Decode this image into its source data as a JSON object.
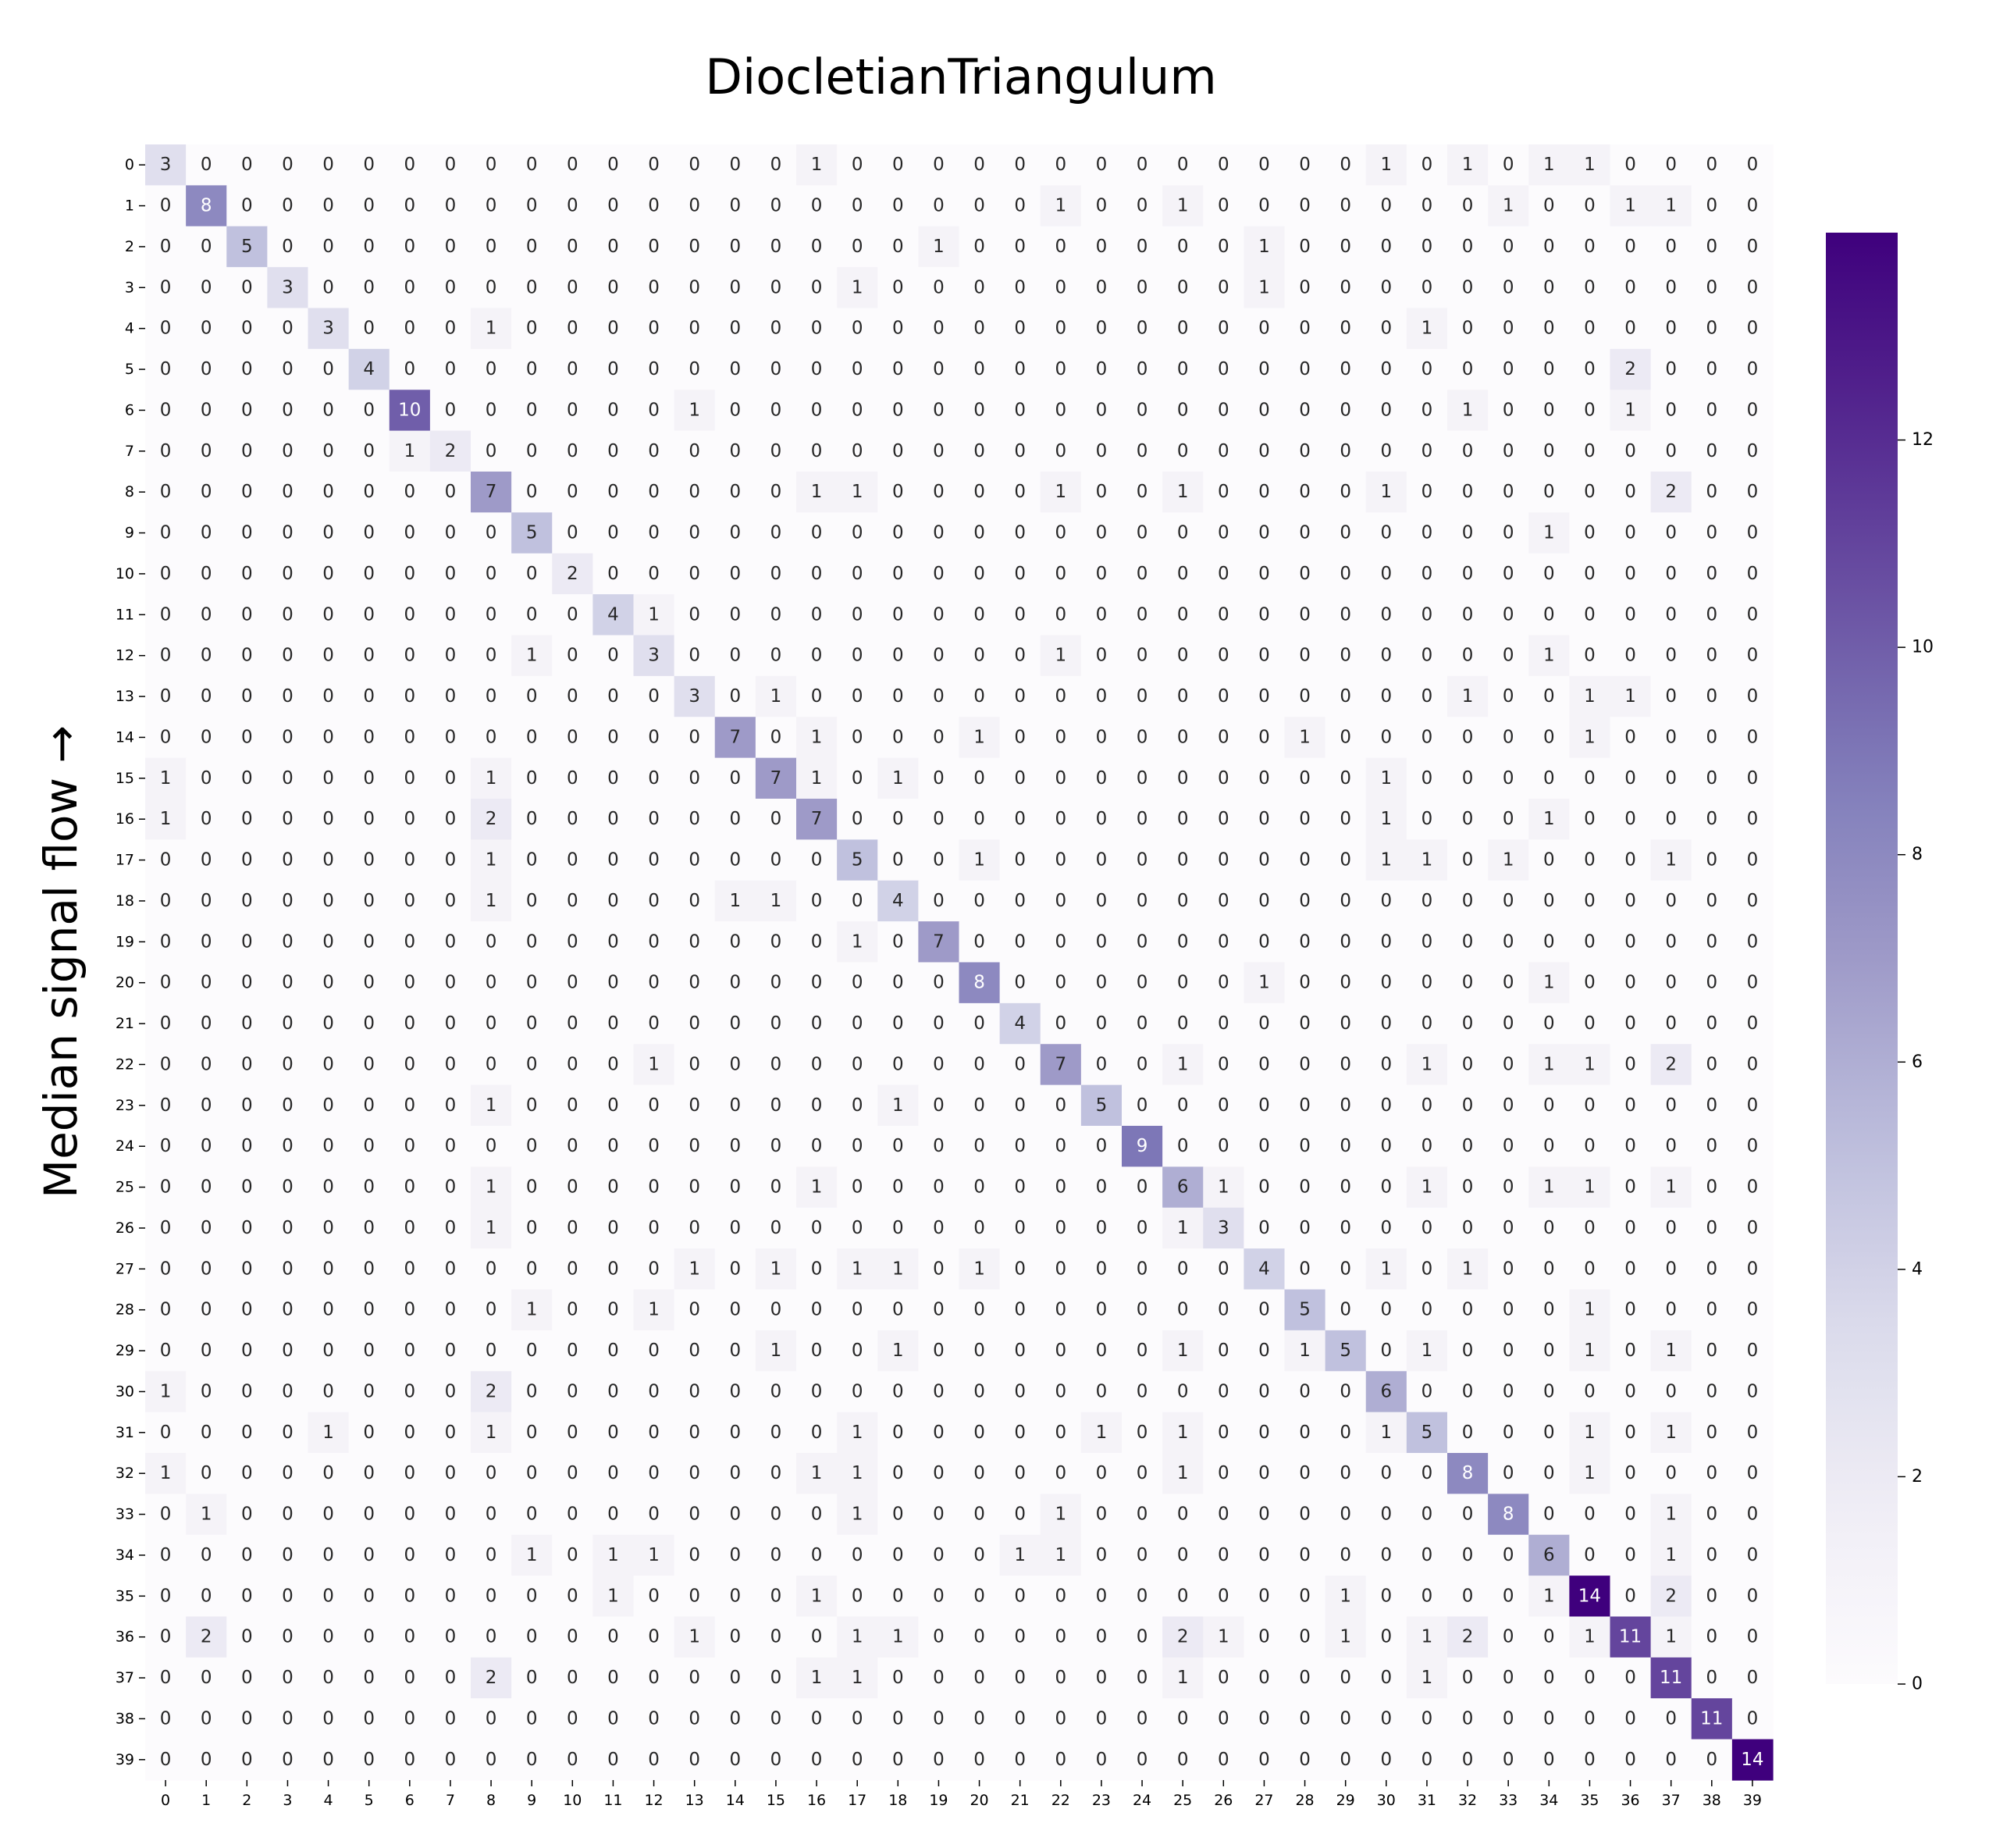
{
  "chart_data": {
    "type": "heatmap",
    "title": "DiocletianTriangulum",
    "xlabel": "",
    "ylabel": "Median signal flow →",
    "x_categories": [
      "0",
      "1",
      "2",
      "3",
      "4",
      "5",
      "6",
      "7",
      "8",
      "9",
      "10",
      "11",
      "12",
      "13",
      "14",
      "15",
      "16",
      "17",
      "18",
      "19",
      "20",
      "21",
      "22",
      "23",
      "24",
      "25",
      "26",
      "27",
      "28",
      "29",
      "30",
      "31",
      "32",
      "33",
      "34",
      "35",
      "36",
      "37",
      "38",
      "39"
    ],
    "y_categories": [
      "0",
      "1",
      "2",
      "3",
      "4",
      "5",
      "6",
      "7",
      "8",
      "9",
      "10",
      "11",
      "12",
      "13",
      "14",
      "15",
      "16",
      "17",
      "18",
      "19",
      "20",
      "21",
      "22",
      "23",
      "24",
      "25",
      "26",
      "27",
      "28",
      "29",
      "30",
      "31",
      "32",
      "33",
      "34",
      "35",
      "36",
      "37",
      "38",
      "39"
    ],
    "colormap": "Purples",
    "color_low": "#fcfbfd",
    "color_high": "#3f007d",
    "vmin": 0,
    "vmax": 14,
    "colorbar_ticks": [
      0,
      2,
      4,
      6,
      8,
      10,
      12
    ],
    "annotated": true,
    "grid": false,
    "values": [
      [
        3,
        0,
        0,
        0,
        0,
        0,
        0,
        0,
        0,
        0,
        0,
        0,
        0,
        0,
        0,
        0,
        1,
        0,
        0,
        0,
        0,
        0,
        0,
        0,
        0,
        0,
        0,
        0,
        0,
        0,
        1,
        0,
        1,
        0,
        1,
        1,
        0,
        0,
        0,
        0
      ],
      [
        0,
        8,
        0,
        0,
        0,
        0,
        0,
        0,
        0,
        0,
        0,
        0,
        0,
        0,
        0,
        0,
        0,
        0,
        0,
        0,
        0,
        0,
        1,
        0,
        0,
        1,
        0,
        0,
        0,
        0,
        0,
        0,
        0,
        1,
        0,
        0,
        1,
        1,
        0,
        0
      ],
      [
        0,
        0,
        5,
        0,
        0,
        0,
        0,
        0,
        0,
        0,
        0,
        0,
        0,
        0,
        0,
        0,
        0,
        0,
        0,
        1,
        0,
        0,
        0,
        0,
        0,
        0,
        0,
        1,
        0,
        0,
        0,
        0,
        0,
        0,
        0,
        0,
        0,
        0,
        0,
        0
      ],
      [
        0,
        0,
        0,
        3,
        0,
        0,
        0,
        0,
        0,
        0,
        0,
        0,
        0,
        0,
        0,
        0,
        0,
        1,
        0,
        0,
        0,
        0,
        0,
        0,
        0,
        0,
        0,
        1,
        0,
        0,
        0,
        0,
        0,
        0,
        0,
        0,
        0,
        0,
        0,
        0
      ],
      [
        0,
        0,
        0,
        0,
        3,
        0,
        0,
        0,
        1,
        0,
        0,
        0,
        0,
        0,
        0,
        0,
        0,
        0,
        0,
        0,
        0,
        0,
        0,
        0,
        0,
        0,
        0,
        0,
        0,
        0,
        0,
        1,
        0,
        0,
        0,
        0,
        0,
        0,
        0,
        0
      ],
      [
        0,
        0,
        0,
        0,
        0,
        4,
        0,
        0,
        0,
        0,
        0,
        0,
        0,
        0,
        0,
        0,
        0,
        0,
        0,
        0,
        0,
        0,
        0,
        0,
        0,
        0,
        0,
        0,
        0,
        0,
        0,
        0,
        0,
        0,
        0,
        0,
        2,
        0,
        0,
        0
      ],
      [
        0,
        0,
        0,
        0,
        0,
        0,
        10,
        0,
        0,
        0,
        0,
        0,
        0,
        1,
        0,
        0,
        0,
        0,
        0,
        0,
        0,
        0,
        0,
        0,
        0,
        0,
        0,
        0,
        0,
        0,
        0,
        0,
        1,
        0,
        0,
        0,
        1,
        0,
        0,
        0
      ],
      [
        0,
        0,
        0,
        0,
        0,
        0,
        1,
        2,
        0,
        0,
        0,
        0,
        0,
        0,
        0,
        0,
        0,
        0,
        0,
        0,
        0,
        0,
        0,
        0,
        0,
        0,
        0,
        0,
        0,
        0,
        0,
        0,
        0,
        0,
        0,
        0,
        0,
        0,
        0,
        0
      ],
      [
        0,
        0,
        0,
        0,
        0,
        0,
        0,
        0,
        7,
        0,
        0,
        0,
        0,
        0,
        0,
        0,
        1,
        1,
        0,
        0,
        0,
        0,
        1,
        0,
        0,
        1,
        0,
        0,
        0,
        0,
        1,
        0,
        0,
        0,
        0,
        0,
        0,
        2,
        0,
        0
      ],
      [
        0,
        0,
        0,
        0,
        0,
        0,
        0,
        0,
        0,
        5,
        0,
        0,
        0,
        0,
        0,
        0,
        0,
        0,
        0,
        0,
        0,
        0,
        0,
        0,
        0,
        0,
        0,
        0,
        0,
        0,
        0,
        0,
        0,
        0,
        1,
        0,
        0,
        0,
        0,
        0
      ],
      [
        0,
        0,
        0,
        0,
        0,
        0,
        0,
        0,
        0,
        0,
        2,
        0,
        0,
        0,
        0,
        0,
        0,
        0,
        0,
        0,
        0,
        0,
        0,
        0,
        0,
        0,
        0,
        0,
        0,
        0,
        0,
        0,
        0,
        0,
        0,
        0,
        0,
        0,
        0,
        0
      ],
      [
        0,
        0,
        0,
        0,
        0,
        0,
        0,
        0,
        0,
        0,
        0,
        4,
        1,
        0,
        0,
        0,
        0,
        0,
        0,
        0,
        0,
        0,
        0,
        0,
        0,
        0,
        0,
        0,
        0,
        0,
        0,
        0,
        0,
        0,
        0,
        0,
        0,
        0,
        0,
        0
      ],
      [
        0,
        0,
        0,
        0,
        0,
        0,
        0,
        0,
        0,
        1,
        0,
        0,
        3,
        0,
        0,
        0,
        0,
        0,
        0,
        0,
        0,
        0,
        1,
        0,
        0,
        0,
        0,
        0,
        0,
        0,
        0,
        0,
        0,
        0,
        1,
        0,
        0,
        0,
        0,
        0
      ],
      [
        0,
        0,
        0,
        0,
        0,
        0,
        0,
        0,
        0,
        0,
        0,
        0,
        0,
        3,
        0,
        1,
        0,
        0,
        0,
        0,
        0,
        0,
        0,
        0,
        0,
        0,
        0,
        0,
        0,
        0,
        0,
        0,
        1,
        0,
        0,
        1,
        1,
        0,
        0,
        0
      ],
      [
        0,
        0,
        0,
        0,
        0,
        0,
        0,
        0,
        0,
        0,
        0,
        0,
        0,
        0,
        7,
        0,
        1,
        0,
        0,
        0,
        1,
        0,
        0,
        0,
        0,
        0,
        0,
        0,
        1,
        0,
        0,
        0,
        0,
        0,
        0,
        1,
        0,
        0,
        0,
        0
      ],
      [
        1,
        0,
        0,
        0,
        0,
        0,
        0,
        0,
        1,
        0,
        0,
        0,
        0,
        0,
        0,
        7,
        1,
        0,
        1,
        0,
        0,
        0,
        0,
        0,
        0,
        0,
        0,
        0,
        0,
        0,
        1,
        0,
        0,
        0,
        0,
        0,
        0,
        0,
        0,
        0
      ],
      [
        1,
        0,
        0,
        0,
        0,
        0,
        0,
        0,
        2,
        0,
        0,
        0,
        0,
        0,
        0,
        0,
        7,
        0,
        0,
        0,
        0,
        0,
        0,
        0,
        0,
        0,
        0,
        0,
        0,
        0,
        1,
        0,
        0,
        0,
        1,
        0,
        0,
        0,
        0,
        0
      ],
      [
        0,
        0,
        0,
        0,
        0,
        0,
        0,
        0,
        1,
        0,
        0,
        0,
        0,
        0,
        0,
        0,
        0,
        5,
        0,
        0,
        1,
        0,
        0,
        0,
        0,
        0,
        0,
        0,
        0,
        0,
        1,
        1,
        0,
        1,
        0,
        0,
        0,
        1,
        0,
        0
      ],
      [
        0,
        0,
        0,
        0,
        0,
        0,
        0,
        0,
        1,
        0,
        0,
        0,
        0,
        0,
        1,
        1,
        0,
        0,
        4,
        0,
        0,
        0,
        0,
        0,
        0,
        0,
        0,
        0,
        0,
        0,
        0,
        0,
        0,
        0,
        0,
        0,
        0,
        0,
        0,
        0
      ],
      [
        0,
        0,
        0,
        0,
        0,
        0,
        0,
        0,
        0,
        0,
        0,
        0,
        0,
        0,
        0,
        0,
        0,
        1,
        0,
        7,
        0,
        0,
        0,
        0,
        0,
        0,
        0,
        0,
        0,
        0,
        0,
        0,
        0,
        0,
        0,
        0,
        0,
        0,
        0,
        0
      ],
      [
        0,
        0,
        0,
        0,
        0,
        0,
        0,
        0,
        0,
        0,
        0,
        0,
        0,
        0,
        0,
        0,
        0,
        0,
        0,
        0,
        8,
        0,
        0,
        0,
        0,
        0,
        0,
        1,
        0,
        0,
        0,
        0,
        0,
        0,
        1,
        0,
        0,
        0,
        0,
        0
      ],
      [
        0,
        0,
        0,
        0,
        0,
        0,
        0,
        0,
        0,
        0,
        0,
        0,
        0,
        0,
        0,
        0,
        0,
        0,
        0,
        0,
        0,
        4,
        0,
        0,
        0,
        0,
        0,
        0,
        0,
        0,
        0,
        0,
        0,
        0,
        0,
        0,
        0,
        0,
        0,
        0
      ],
      [
        0,
        0,
        0,
        0,
        0,
        0,
        0,
        0,
        0,
        0,
        0,
        0,
        1,
        0,
        0,
        0,
        0,
        0,
        0,
        0,
        0,
        0,
        7,
        0,
        0,
        1,
        0,
        0,
        0,
        0,
        0,
        1,
        0,
        0,
        1,
        1,
        0,
        2,
        0,
        0
      ],
      [
        0,
        0,
        0,
        0,
        0,
        0,
        0,
        0,
        1,
        0,
        0,
        0,
        0,
        0,
        0,
        0,
        0,
        0,
        1,
        0,
        0,
        0,
        0,
        5,
        0,
        0,
        0,
        0,
        0,
        0,
        0,
        0,
        0,
        0,
        0,
        0,
        0,
        0,
        0,
        0
      ],
      [
        0,
        0,
        0,
        0,
        0,
        0,
        0,
        0,
        0,
        0,
        0,
        0,
        0,
        0,
        0,
        0,
        0,
        0,
        0,
        0,
        0,
        0,
        0,
        0,
        9,
        0,
        0,
        0,
        0,
        0,
        0,
        0,
        0,
        0,
        0,
        0,
        0,
        0,
        0,
        0
      ],
      [
        0,
        0,
        0,
        0,
        0,
        0,
        0,
        0,
        1,
        0,
        0,
        0,
        0,
        0,
        0,
        0,
        1,
        0,
        0,
        0,
        0,
        0,
        0,
        0,
        0,
        6,
        1,
        0,
        0,
        0,
        0,
        1,
        0,
        0,
        1,
        1,
        0,
        1,
        0,
        0
      ],
      [
        0,
        0,
        0,
        0,
        0,
        0,
        0,
        0,
        1,
        0,
        0,
        0,
        0,
        0,
        0,
        0,
        0,
        0,
        0,
        0,
        0,
        0,
        0,
        0,
        0,
        1,
        3,
        0,
        0,
        0,
        0,
        0,
        0,
        0,
        0,
        0,
        0,
        0,
        0,
        0
      ],
      [
        0,
        0,
        0,
        0,
        0,
        0,
        0,
        0,
        0,
        0,
        0,
        0,
        0,
        1,
        0,
        1,
        0,
        1,
        1,
        0,
        1,
        0,
        0,
        0,
        0,
        0,
        0,
        4,
        0,
        0,
        1,
        0,
        1,
        0,
        0,
        0,
        0,
        0,
        0,
        0
      ],
      [
        0,
        0,
        0,
        0,
        0,
        0,
        0,
        0,
        0,
        1,
        0,
        0,
        1,
        0,
        0,
        0,
        0,
        0,
        0,
        0,
        0,
        0,
        0,
        0,
        0,
        0,
        0,
        0,
        5,
        0,
        0,
        0,
        0,
        0,
        0,
        1,
        0,
        0,
        0,
        0
      ],
      [
        0,
        0,
        0,
        0,
        0,
        0,
        0,
        0,
        0,
        0,
        0,
        0,
        0,
        0,
        0,
        1,
        0,
        0,
        1,
        0,
        0,
        0,
        0,
        0,
        0,
        1,
        0,
        0,
        1,
        5,
        0,
        1,
        0,
        0,
        0,
        1,
        0,
        1,
        0,
        0
      ],
      [
        1,
        0,
        0,
        0,
        0,
        0,
        0,
        0,
        2,
        0,
        0,
        0,
        0,
        0,
        0,
        0,
        0,
        0,
        0,
        0,
        0,
        0,
        0,
        0,
        0,
        0,
        0,
        0,
        0,
        0,
        6,
        0,
        0,
        0,
        0,
        0,
        0,
        0,
        0,
        0
      ],
      [
        0,
        0,
        0,
        0,
        1,
        0,
        0,
        0,
        1,
        0,
        0,
        0,
        0,
        0,
        0,
        0,
        0,
        1,
        0,
        0,
        0,
        0,
        0,
        1,
        0,
        1,
        0,
        0,
        0,
        0,
        1,
        5,
        0,
        0,
        0,
        1,
        0,
        1,
        0,
        0
      ],
      [
        1,
        0,
        0,
        0,
        0,
        0,
        0,
        0,
        0,
        0,
        0,
        0,
        0,
        0,
        0,
        0,
        1,
        1,
        0,
        0,
        0,
        0,
        0,
        0,
        0,
        1,
        0,
        0,
        0,
        0,
        0,
        0,
        8,
        0,
        0,
        1,
        0,
        0,
        0,
        0
      ],
      [
        0,
        1,
        0,
        0,
        0,
        0,
        0,
        0,
        0,
        0,
        0,
        0,
        0,
        0,
        0,
        0,
        0,
        1,
        0,
        0,
        0,
        0,
        1,
        0,
        0,
        0,
        0,
        0,
        0,
        0,
        0,
        0,
        0,
        8,
        0,
        0,
        0,
        1,
        0,
        0
      ],
      [
        0,
        0,
        0,
        0,
        0,
        0,
        0,
        0,
        0,
        1,
        0,
        1,
        1,
        0,
        0,
        0,
        0,
        0,
        0,
        0,
        0,
        1,
        1,
        0,
        0,
        0,
        0,
        0,
        0,
        0,
        0,
        0,
        0,
        0,
        6,
        0,
        0,
        1,
        0,
        0
      ],
      [
        0,
        0,
        0,
        0,
        0,
        0,
        0,
        0,
        0,
        0,
        0,
        1,
        0,
        0,
        0,
        0,
        1,
        0,
        0,
        0,
        0,
        0,
        0,
        0,
        0,
        0,
        0,
        0,
        0,
        1,
        0,
        0,
        0,
        0,
        1,
        14,
        0,
        2,
        0,
        0
      ],
      [
        0,
        2,
        0,
        0,
        0,
        0,
        0,
        0,
        0,
        0,
        0,
        0,
        0,
        1,
        0,
        0,
        0,
        1,
        1,
        0,
        0,
        0,
        0,
        0,
        0,
        2,
        1,
        0,
        0,
        1,
        0,
        1,
        2,
        0,
        0,
        1,
        11,
        1,
        0,
        0
      ],
      [
        0,
        0,
        0,
        0,
        0,
        0,
        0,
        0,
        2,
        0,
        0,
        0,
        0,
        0,
        0,
        0,
        1,
        1,
        0,
        0,
        0,
        0,
        0,
        0,
        0,
        1,
        0,
        0,
        0,
        0,
        0,
        1,
        0,
        0,
        0,
        0,
        0,
        11,
        0,
        0
      ],
      [
        0,
        0,
        0,
        0,
        0,
        0,
        0,
        0,
        0,
        0,
        0,
        0,
        0,
        0,
        0,
        0,
        0,
        0,
        0,
        0,
        0,
        0,
        0,
        0,
        0,
        0,
        0,
        0,
        0,
        0,
        0,
        0,
        0,
        0,
        0,
        0,
        0,
        0,
        11,
        0
      ],
      [
        0,
        0,
        0,
        0,
        0,
        0,
        0,
        0,
        0,
        0,
        0,
        0,
        0,
        0,
        0,
        0,
        0,
        0,
        0,
        0,
        0,
        0,
        0,
        0,
        0,
        0,
        0,
        0,
        0,
        0,
        0,
        0,
        0,
        0,
        0,
        0,
        0,
        0,
        0,
        14
      ]
    ]
  }
}
